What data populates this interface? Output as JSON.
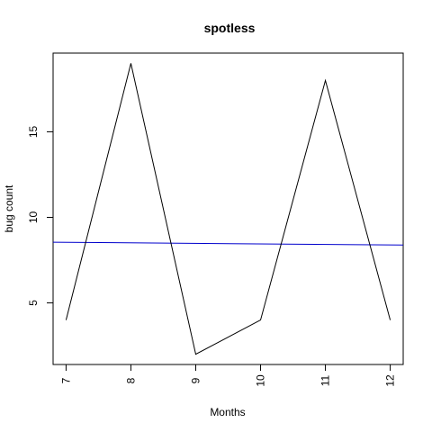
{
  "chart_data": {
    "type": "line",
    "title": "spotless",
    "xlabel": "Months",
    "ylabel": "bug count",
    "x": [
      7,
      8,
      9,
      10,
      11,
      12
    ],
    "xlim": [
      6.8,
      12.2
    ],
    "ylim": [
      1.4,
      19.6
    ],
    "xticks": [
      "7",
      "8",
      "9",
      "10",
      "11",
      "12"
    ],
    "yticks": [
      5,
      10,
      15
    ],
    "series": [
      {
        "values": [
          4,
          19,
          2,
          4,
          18,
          4
        ],
        "color": "#000000"
      }
    ],
    "trend_line": {
      "start": [
        6.8,
        8.55
      ],
      "end": [
        12.2,
        8.38
      ],
      "color": "#0000cc"
    },
    "grid": false,
    "legend": "none"
  }
}
